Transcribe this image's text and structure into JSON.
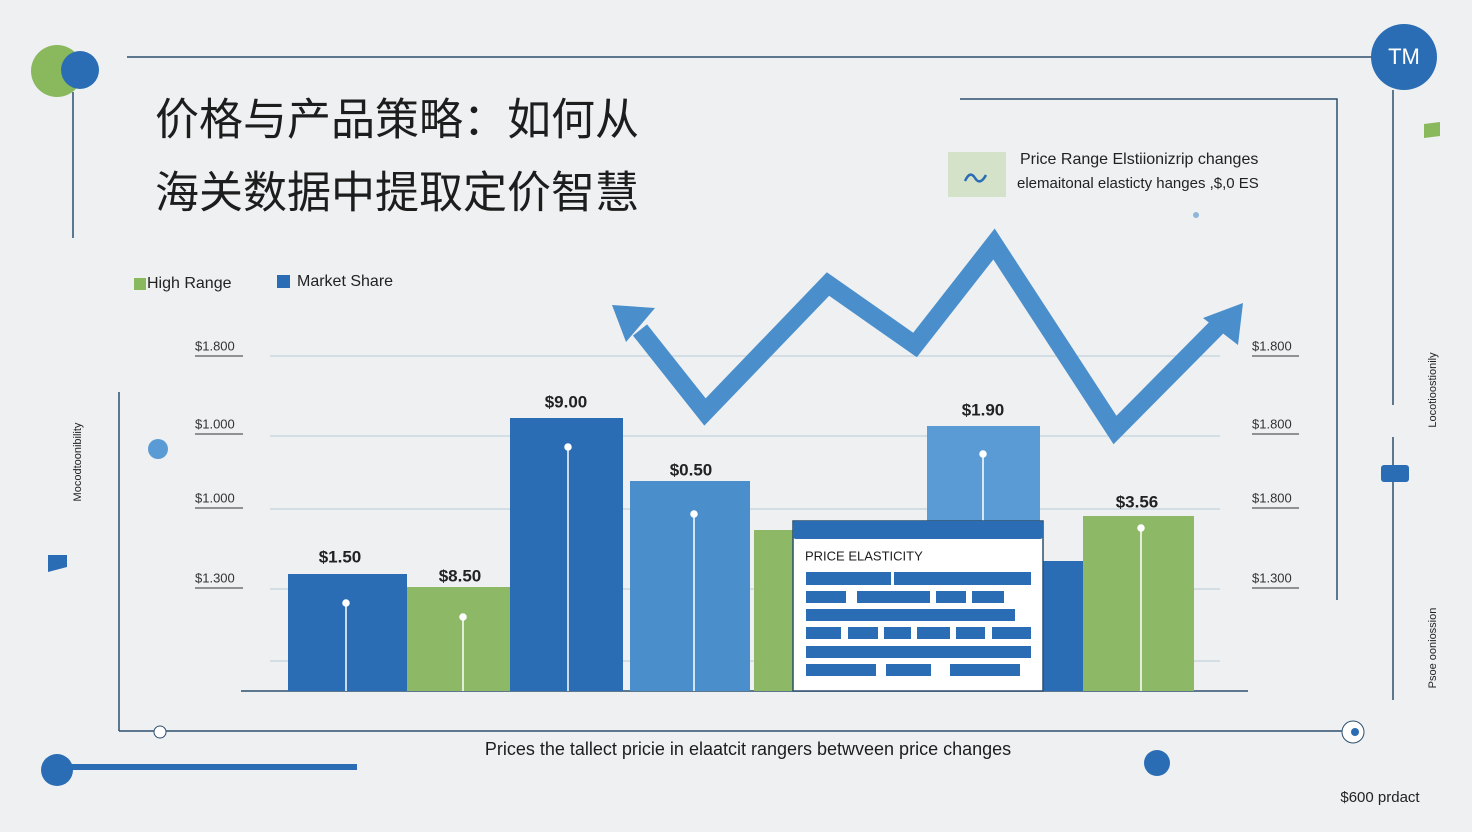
{
  "title": {
    "lines": [
      "价格与产品策略：如何从",
      "海关数据中提取定价智慧"
    ]
  },
  "logo": "TM",
  "legend": [
    "High Range",
    "Market Share"
  ],
  "callout": {
    "lines": [
      "Price Range Elstiionizrip changes",
      "elemaitonal elasticty hanges ,$,0 ES"
    ]
  },
  "left_axis_labels": [
    "$1.800",
    "$1.000",
    "$1.000",
    "$1.300"
  ],
  "right_axis_labels": [
    "$1.800",
    "$1.800",
    "$1.800",
    "$1.300"
  ],
  "bar_labels": [
    "$1.50",
    "$8.50",
    "$9.00",
    "$0.50",
    "$1.90",
    "$3.56"
  ],
  "panel_title": "PRICE ELASTICITY",
  "side_labels": {
    "left": "Mocodtoonibility",
    "right_top": "Locotioostionily",
    "right_bottom": "Psoe ooniossion"
  },
  "caption": "Prices the tallect pricie in elaatcit rangers betwveen price changes",
  "footer": "$600 prdact"
}
